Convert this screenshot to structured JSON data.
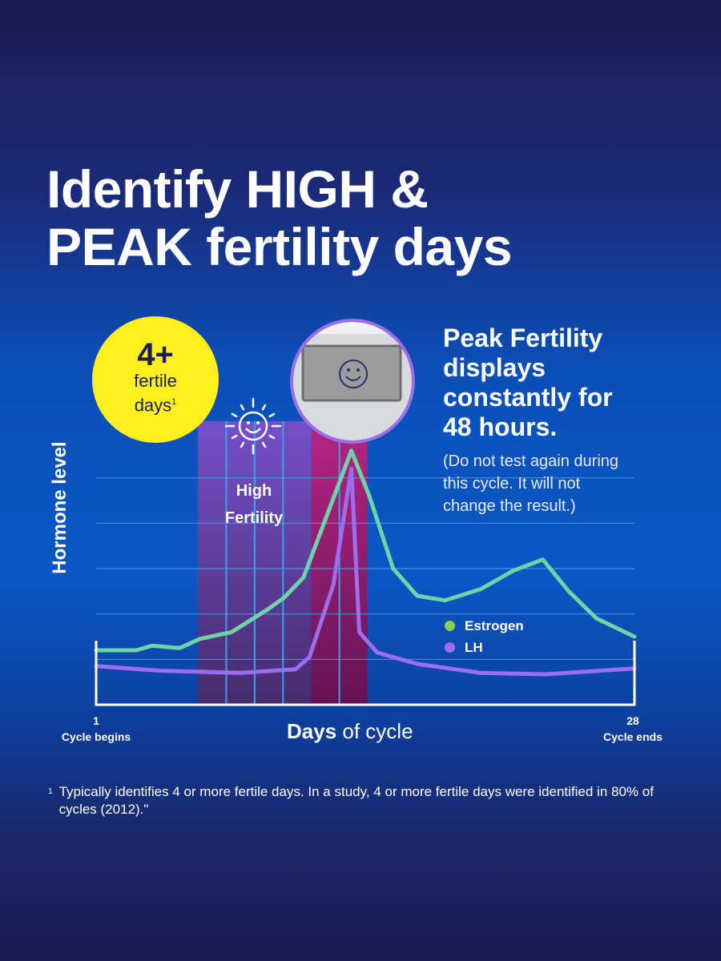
{
  "headline": {
    "line1": "Identify HIGH &",
    "line2": "PEAK fertility days"
  },
  "badge": {
    "value": "4+",
    "line1": "fertile",
    "line2": "days",
    "footnote_mark": "1"
  },
  "peak": {
    "heading": [
      "Peak Fertility",
      "displays",
      "constantly for",
      "48 hours."
    ],
    "note": [
      "(Do not test again during",
      "this cycle. It will not",
      "change the result.)"
    ]
  },
  "footnote": {
    "mark": "1",
    "text": "Typically identifies 4 or more fertile days. In a study, 4 or more fertile days were identified in 80% of cycles (2012).\""
  },
  "icons": {
    "sun": "smiling-sun-icon",
    "display": "test-display-smiley-icon"
  },
  "chart_data": {
    "type": "line",
    "ylabel": "Hormone level",
    "xlabel_bold": "Days",
    "xlabel_rest": "of cycle",
    "xlim": [
      1,
      28
    ],
    "ylim": [
      0,
      6
    ],
    "grid": true,
    "x_tick_labels": [
      {
        "value": "1",
        "caption": "Cycle begins"
      },
      {
        "value": "28",
        "caption": "Cycle ends"
      }
    ],
    "legend_placement": "center-right",
    "bands": [
      {
        "label_line1": "High",
        "label_line2": "Fertility",
        "from": 6.1,
        "to": 11.8,
        "stripes": 4,
        "color": "#7b4fc9"
      },
      {
        "label_line1": "",
        "label_line2": "",
        "from": 11.8,
        "to": 14.6,
        "stripes": 2,
        "color": "#c0227f"
      }
    ],
    "series": [
      {
        "name": "Estrogen",
        "color": "#6fd3a8",
        "legend_color": "#8ed14a",
        "points": [
          [
            1,
            1.2
          ],
          [
            3,
            1.2
          ],
          [
            3.8,
            1.3
          ],
          [
            5.2,
            1.25
          ],
          [
            6.2,
            1.45
          ],
          [
            7.8,
            1.6
          ],
          [
            9.6,
            2.1
          ],
          [
            10.4,
            2.35
          ],
          [
            11.4,
            2.8
          ],
          [
            12.6,
            4.2
          ],
          [
            13.8,
            5.6
          ],
          [
            14.7,
            4.6
          ],
          [
            15.9,
            3.0
          ],
          [
            17.1,
            2.4
          ],
          [
            18.5,
            2.3
          ],
          [
            20.3,
            2.55
          ],
          [
            21.9,
            2.95
          ],
          [
            23.4,
            3.2
          ],
          [
            24.7,
            2.5
          ],
          [
            26.1,
            1.9
          ],
          [
            28,
            1.5
          ]
        ]
      },
      {
        "name": "LH",
        "color": "#9b6ef0",
        "legend_color": "#9b6ef0",
        "points": [
          [
            1,
            0.85
          ],
          [
            4.2,
            0.75
          ],
          [
            8.2,
            0.7
          ],
          [
            11,
            0.78
          ],
          [
            11.7,
            1.05
          ],
          [
            12.9,
            2.65
          ],
          [
            13.8,
            5.2
          ],
          [
            14.2,
            1.6
          ],
          [
            15.1,
            1.15
          ],
          [
            17.1,
            0.9
          ],
          [
            20.3,
            0.7
          ],
          [
            23.5,
            0.67
          ],
          [
            28,
            0.8
          ]
        ]
      }
    ]
  }
}
